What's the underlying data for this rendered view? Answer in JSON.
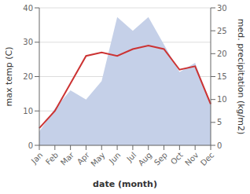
{
  "chart_data": {
    "type": "line",
    "xlabel": "date (month)",
    "ylabel": "max temp (C)",
    "y2label": "med. precipitation (kg/m2)",
    "categories": [
      "Jan",
      "Feb",
      "Mar",
      "Apr",
      "May",
      "Jun",
      "Jul",
      "Aug",
      "Sep",
      "Oct",
      "Nov",
      "Dec"
    ],
    "series": [
      {
        "type": "area",
        "axis": "y2",
        "color": "#c5d0e8",
        "values": [
          3,
          8,
          12,
          10,
          14,
          28,
          25,
          28,
          22,
          16,
          18,
          9
        ]
      },
      {
        "type": "line",
        "color": "#cc3333",
        "values": [
          5,
          10,
          18,
          26,
          27,
          26,
          28,
          29,
          28,
          22,
          23,
          12
        ]
      }
    ],
    "ylim": [
      0,
      40
    ],
    "yticks": [
      0,
      10,
      20,
      30,
      40
    ],
    "y2lim": [
      0,
      30
    ],
    "y2ticks": [
      0,
      5,
      10,
      15,
      20,
      25,
      30
    ],
    "grid": true
  }
}
